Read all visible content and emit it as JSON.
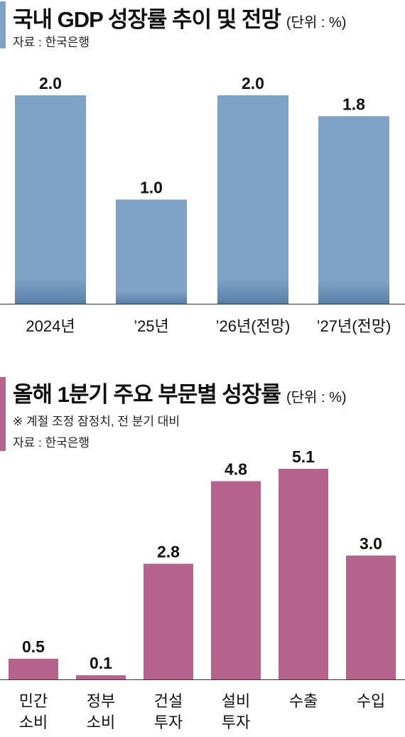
{
  "colors": {
    "chart1_bar": "#7ea3c7",
    "chart1_bar_bottom": "#5a7fa5",
    "chart1_accent": "#7ea3c7",
    "chart2_bar": "#b5628d",
    "chart2_accent": "#b5628d"
  },
  "chart_data": [
    {
      "type": "bar",
      "title": "국내 GDP 성장률 추이 및 전망",
      "unit": "(단위 : %)",
      "source": "자료 : 한국은행",
      "categories": [
        "2024년",
        "’25년",
        "’26년(전망)",
        "’27년(전망)"
      ],
      "values": [
        2.0,
        1.0,
        2.0,
        1.8
      ],
      "value_labels": [
        "2.0",
        "1.0",
        "2.0",
        "1.8"
      ],
      "ylim": [
        0,
        2.0
      ],
      "grid": false,
      "legend": "none"
    },
    {
      "type": "bar",
      "title": "올해 1분기 주요 부문별 성장률",
      "unit": "(단위 : %)",
      "note": "※ 계절 조정 잠정치, 전 분기 대비",
      "source": "자료 : 한국은행",
      "categories": [
        [
          "민간",
          "소비"
        ],
        [
          "정부",
          "소비"
        ],
        [
          "건설",
          "투자"
        ],
        [
          "설비",
          "투자"
        ],
        [
          "수출"
        ],
        [
          "수입"
        ]
      ],
      "values": [
        0.5,
        0.1,
        2.8,
        4.8,
        5.1,
        3.0
      ],
      "value_labels": [
        "0.5",
        "0.1",
        "2.8",
        "4.8",
        "5.1",
        "3.0"
      ],
      "ylim": [
        0,
        5.1
      ],
      "grid": false,
      "legend": "none"
    }
  ]
}
